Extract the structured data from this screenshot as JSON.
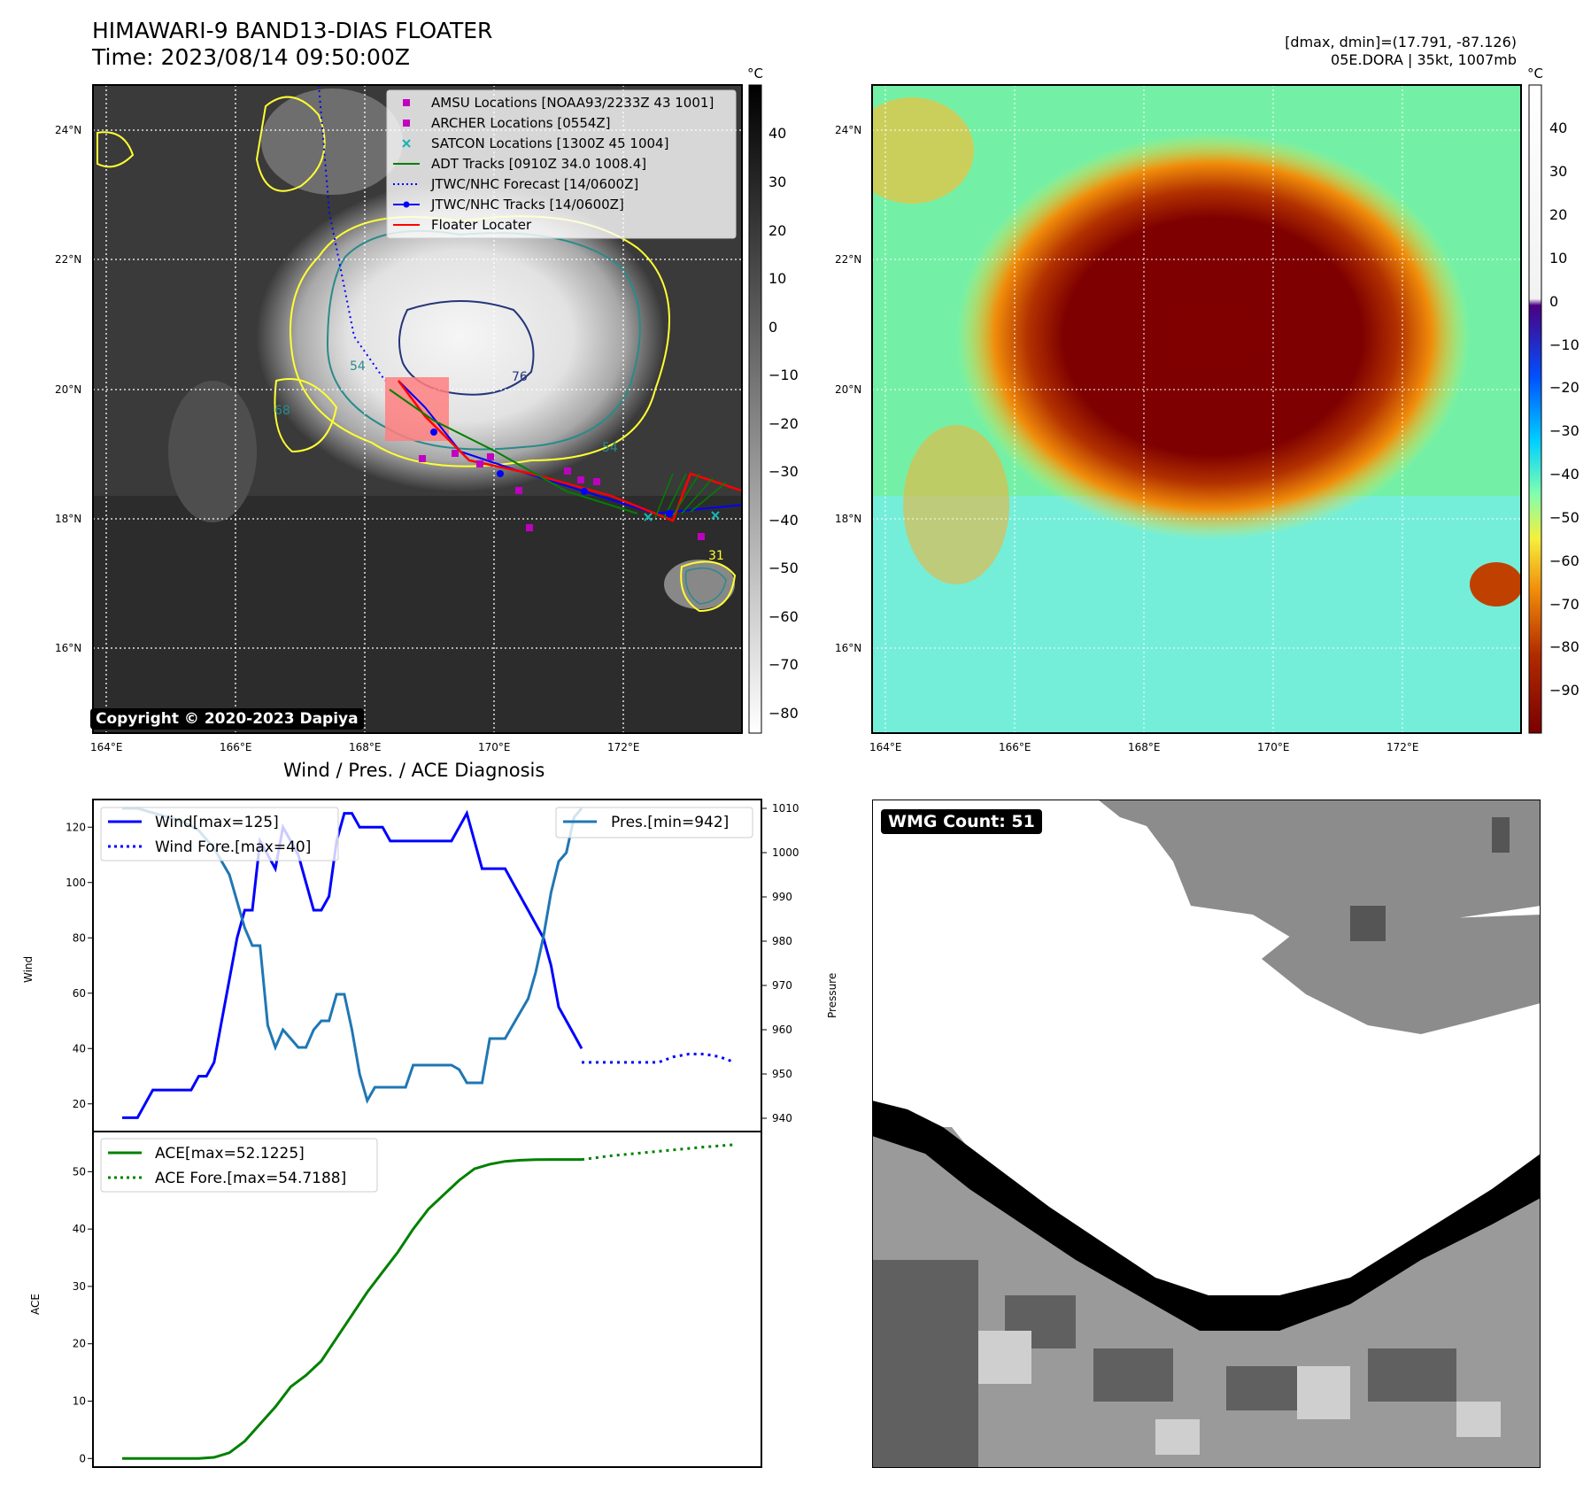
{
  "header": {
    "title_line1": "HIMAWARI-9 BAND13-DIAS FLOATER",
    "title_line2": "Time: 2023/08/14 09:50:00Z",
    "right_line1": "[dmax, dmin]=(17.791, -87.126)",
    "right_line2": "05E.DORA | 35kt, 1007mb"
  },
  "map_axes": {
    "lat_ticks": [
      "24°N",
      "22°N",
      "20°N",
      "18°N",
      "16°N"
    ],
    "lon_ticks": [
      "164°E",
      "166°E",
      "168°E",
      "170°E",
      "172°E"
    ]
  },
  "colorbar_left": {
    "unit": "°C",
    "ticks": [
      "40",
      "30",
      "20",
      "10",
      "0",
      "−10",
      "−20",
      "−30",
      "−40",
      "−50",
      "−60",
      "−70",
      "−80"
    ]
  },
  "colorbar_right": {
    "unit": "°C",
    "ticks": [
      "40",
      "30",
      "20",
      "10",
      "0",
      "−10",
      "−20",
      "−30",
      "−40",
      "−50",
      "−60",
      "−70",
      "−80",
      "−90"
    ]
  },
  "legend": {
    "items": [
      {
        "label": "AMSU Locations [NOAA93/2233Z 43 1001]",
        "color": "#c000c0"
      },
      {
        "label": "ARCHER Locations [0554Z]",
        "color": "#c000c0"
      },
      {
        "label": "SATCON Locations [1300Z 45 1004]",
        "color": "#17b3b3"
      },
      {
        "label": "ADT Tracks [0910Z 34.0 1008.4]",
        "color": "#008000"
      },
      {
        "label": "JTWC/NHC Forecast [14/0600Z]",
        "color": "#0000ff"
      },
      {
        "label": "JTWC/NHC Tracks [14/0600Z]",
        "color": "#0000ff"
      },
      {
        "label": "Floater Locater",
        "color": "#ff0000"
      }
    ]
  },
  "copyright": "Copyright © 2020-2023 Dapiya",
  "contour_labels": [
    "54",
    "76",
    "54",
    "68",
    "31"
  ],
  "wmg_count": "WMG Count: 51",
  "diag_title": "Wind / Pres. / ACE Diagnosis",
  "wind_panel": {
    "ylabel": "Wind",
    "y2label": "Pressure",
    "yticks": [
      "120",
      "100",
      "80",
      "60",
      "40",
      "20"
    ],
    "y2ticks": [
      "1010",
      "1000",
      "990",
      "980",
      "970",
      "960",
      "950",
      "940"
    ],
    "legend_left": [
      "Wind[max=125]",
      "Wind Fore.[max=40]"
    ],
    "legend_right": "Pres.[min=942]"
  },
  "ace_panel": {
    "ylabel": "ACE",
    "yticks": [
      "50",
      "40",
      "30",
      "20",
      "10",
      "0"
    ],
    "legend": [
      "ACE[max=52.1225]",
      "ACE Fore.[max=54.7188]"
    ]
  },
  "chart_data": [
    {
      "type": "line",
      "title": "Wind / Pres. / ACE Diagnosis",
      "ylabel": "Wind",
      "ylim": [
        10,
        130
      ],
      "y2label": "Pressure",
      "y2lim": [
        937,
        1012
      ],
      "grid": false,
      "series": [
        {
          "name": "Wind[max=125]",
          "axis": "left",
          "color": "#0000ff",
          "x": [
            0,
            1,
            2,
            3,
            4,
            5,
            6,
            7,
            8,
            9,
            10,
            11,
            12,
            13,
            14,
            15,
            16,
            17,
            18,
            19,
            20,
            21,
            22,
            23,
            24,
            25,
            26,
            27,
            28,
            29,
            30,
            31,
            32,
            33,
            34,
            35,
            36,
            37,
            38,
            39,
            40,
            41,
            42,
            43,
            44,
            45,
            46,
            47,
            48,
            49,
            50,
            51,
            52,
            53,
            54,
            55
          ],
          "values": [
            15,
            15,
            15,
            20,
            25,
            25,
            25,
            25,
            25,
            25,
            30,
            30,
            35,
            50,
            65,
            80,
            90,
            90,
            115,
            110,
            105,
            120,
            115,
            110,
            100,
            90,
            90,
            95,
            115,
            125,
            125,
            120,
            120,
            120,
            120,
            115,
            115,
            115,
            115,
            115,
            115,
            115,
            115,
            115,
            120,
            125,
            115,
            105,
            105,
            105,
            105,
            100,
            95,
            90,
            85,
            80
          ]
        },
        {
          "name": "Wind (cont.)",
          "axis": "left",
          "color": "#0000ff",
          "x": [
            55,
            56,
            57,
            58,
            59,
            60
          ],
          "values": [
            80,
            70,
            55,
            50,
            45,
            40
          ]
        },
        {
          "name": "Wind Fore.[max=40]",
          "axis": "left",
          "color": "#0000ff",
          "dotted": true,
          "x": [
            60,
            62,
            64,
            66,
            68,
            70,
            72,
            74,
            76,
            78,
            80
          ],
          "values": [
            35,
            35,
            35,
            35,
            35,
            35,
            37,
            38,
            38,
            37,
            35
          ]
        },
        {
          "name": "Pres.[min=942]",
          "axis": "right",
          "color": "#1f77b4",
          "x": [
            0,
            2,
            4,
            6,
            8,
            10,
            12,
            14,
            16,
            17,
            18,
            19,
            20,
            21,
            22,
            23,
            24,
            25,
            26,
            27,
            28,
            29,
            30,
            31,
            32,
            33,
            34,
            35,
            36,
            37,
            38,
            39,
            40,
            41,
            42,
            43,
            44,
            45,
            46,
            47,
            48,
            49,
            50,
            51,
            52,
            53,
            54,
            55,
            56,
            57,
            58,
            59,
            60
          ],
          "values": [
            1010,
            1010,
            1009,
            1008,
            1007,
            1005,
            1001,
            995,
            983,
            979,
            979,
            961,
            956,
            960,
            958,
            956,
            956,
            960,
            962,
            962,
            968,
            968,
            960,
            950,
            944,
            947,
            947,
            947,
            947,
            947,
            952,
            952,
            952,
            952,
            952,
            952,
            951,
            948,
            948,
            948,
            958,
            958,
            958,
            961,
            964,
            967,
            973,
            981,
            991,
            998,
            1000,
            1008,
            1010
          ]
        }
      ]
    },
    {
      "type": "line",
      "ylabel": "ACE",
      "ylim": [
        -1.5,
        57
      ],
      "grid": false,
      "series": [
        {
          "name": "ACE[max=52.1225]",
          "color": "#008000",
          "x": [
            0,
            4,
            8,
            10,
            12,
            14,
            16,
            18,
            20,
            22,
            24,
            26,
            28,
            30,
            32,
            34,
            36,
            38,
            40,
            42,
            44,
            46,
            48,
            50,
            52,
            54,
            56,
            58,
            60
          ],
          "values": [
            0,
            0,
            0,
            0,
            0.2,
            1,
            3,
            6,
            9,
            12.5,
            14.5,
            17,
            21,
            25,
            29,
            32.5,
            36,
            40,
            43.5,
            46,
            48.5,
            50.5,
            51.3,
            51.8,
            52,
            52.1,
            52.12,
            52.12,
            52.12
          ]
        },
        {
          "name": "ACE Fore.[max=54.7188]",
          "color": "#008000",
          "dotted": true,
          "x": [
            60,
            64,
            68,
            72,
            76,
            80
          ],
          "values": [
            52.12,
            52.8,
            53.3,
            53.8,
            54.3,
            54.72
          ]
        }
      ]
    }
  ]
}
